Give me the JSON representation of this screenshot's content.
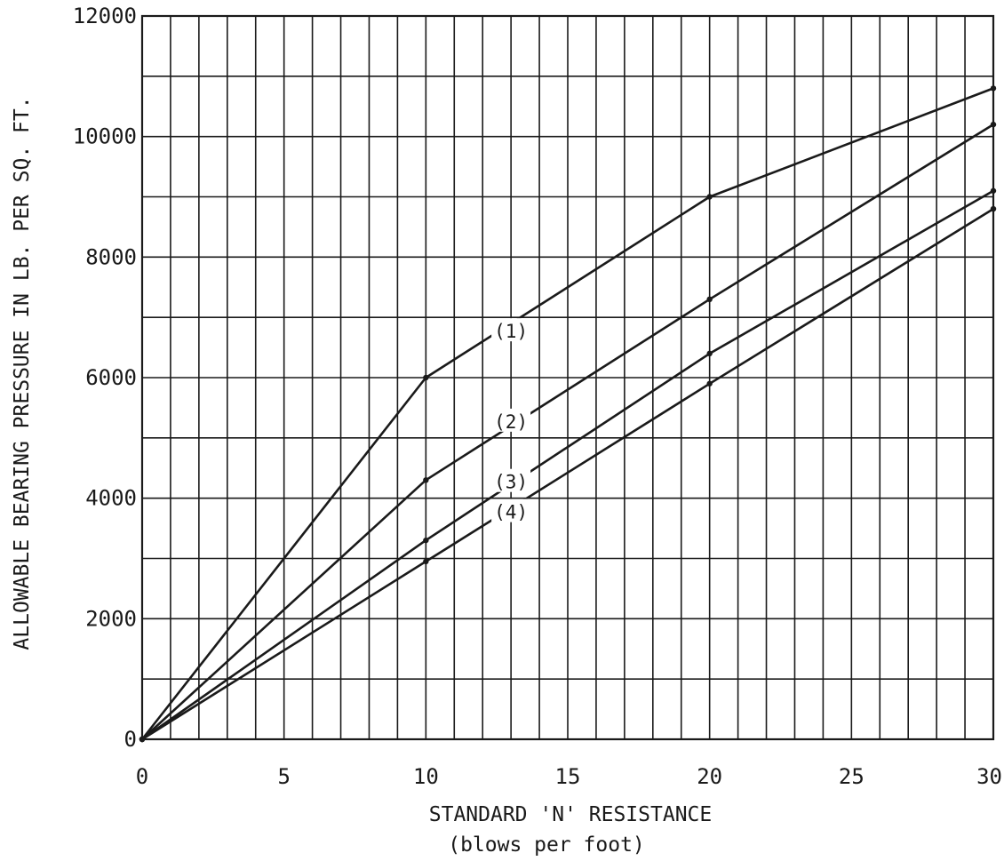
{
  "chart_data": {
    "type": "line",
    "title": "",
    "xlabel": "STANDARD 'N' RESISTANCE",
    "xlabel_sub": "(blows per foot)",
    "ylabel": "ALLOWABLE BEARING PRESSURE IN LB. PER SQ. FT.",
    "xlim": [
      0,
      30
    ],
    "ylim": [
      0,
      12000
    ],
    "x_ticks": [
      0,
      5,
      10,
      15,
      20,
      25,
      30
    ],
    "x_tick_labels": [
      "0",
      "5",
      "10",
      "15",
      "20",
      "25",
      "30"
    ],
    "y_ticks": [
      0,
      2000,
      4000,
      6000,
      8000,
      10000,
      12000
    ],
    "y_tick_labels": [
      "0",
      "2000",
      "4000",
      "6000",
      "8000",
      "10000",
      "12000"
    ],
    "grid": true,
    "line_color": "#1a1a1a",
    "series": [
      {
        "name": "(1)",
        "label_at": [
          13,
          6750
        ],
        "x": [
          0,
          10,
          20,
          30
        ],
        "y": [
          0,
          6000,
          9000,
          10800
        ]
      },
      {
        "name": "(2)",
        "label_at": [
          13,
          5250
        ],
        "x": [
          0,
          10,
          20,
          30
        ],
        "y": [
          0,
          4300,
          7300,
          10200
        ]
      },
      {
        "name": "(3)",
        "label_at": [
          13,
          4250
        ],
        "x": [
          0,
          10,
          20,
          30
        ],
        "y": [
          0,
          3300,
          6400,
          9100
        ]
      },
      {
        "name": "(4)",
        "label_at": [
          13,
          3750
        ],
        "x": [
          0,
          10,
          20,
          30
        ],
        "y": [
          0,
          2950,
          5900,
          8800
        ]
      }
    ]
  }
}
